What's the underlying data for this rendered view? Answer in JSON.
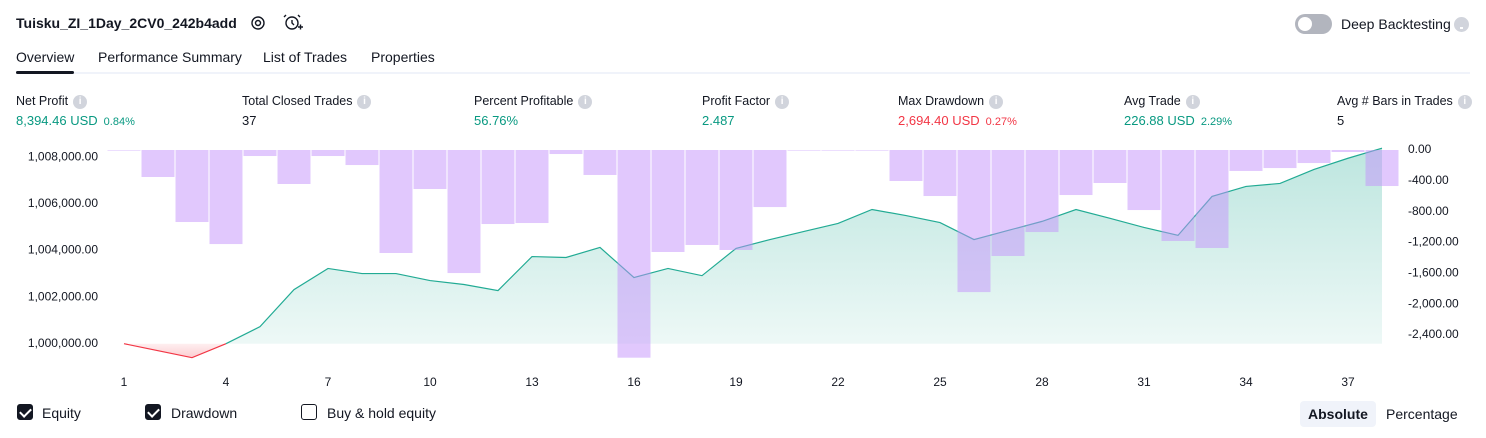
{
  "header": {
    "title": "Tuisku_ZI_1Day_2CV0_242b4add",
    "toggle_label": "Deep Backtesting",
    "toggle_on": false
  },
  "tabs": [
    "Overview",
    "Performance Summary",
    "List of Trades",
    "Properties"
  ],
  "active_tab": 0,
  "metrics": [
    {
      "label": "Net Profit",
      "value": "8,394.46 USD",
      "percent": "0.84%",
      "tone": "positive"
    },
    {
      "label": "Total Closed Trades",
      "value": "37",
      "tone": "neutral"
    },
    {
      "label": "Percent Profitable",
      "value": "56.76%",
      "tone": "positive"
    },
    {
      "label": "Profit Factor",
      "value": "2.487",
      "tone": "positive"
    },
    {
      "label": "Max Drawdown",
      "value": "2,694.40 USD",
      "percent": "0.27%",
      "tone": "negative"
    },
    {
      "label": "Avg Trade",
      "value": "226.88 USD",
      "percent": "2.29%",
      "tone": "positive"
    },
    {
      "label": "Avg # Bars in Trades",
      "value": "5",
      "tone": "neutral"
    }
  ],
  "chart_data": {
    "type": "combo",
    "x": [
      1,
      2,
      3,
      4,
      5,
      6,
      7,
      8,
      9,
      10,
      11,
      12,
      13,
      14,
      15,
      16,
      17,
      18,
      19,
      20,
      21,
      22,
      23,
      24,
      25,
      26,
      27,
      28,
      29,
      30,
      31,
      32,
      33,
      34,
      35,
      36,
      37,
      38
    ],
    "xlim": [
      0.5,
      38.5
    ],
    "xticks": [
      1,
      4,
      7,
      10,
      13,
      16,
      19,
      22,
      25,
      28,
      31,
      34,
      37
    ],
    "ylim": [
      999300,
      1008400
    ],
    "yticks": [
      {
        "value": 1000000,
        "label": "1,000,000.00"
      },
      {
        "value": 1002000,
        "label": "1,002,000.00"
      },
      {
        "value": 1004000,
        "label": "1,004,000.00"
      },
      {
        "value": 1006000,
        "label": "1,006,000.00"
      },
      {
        "value": 1008000,
        "label": "1,008,000.00"
      }
    ],
    "y2lim": [
      -2724,
      0
    ],
    "y2ticks": [
      {
        "value": 0,
        "label": "0.00"
      },
      {
        "value": -400,
        "label": "-400.00"
      },
      {
        "value": -800,
        "label": "-800.00"
      },
      {
        "value": -1200,
        "label": "-1,200.00"
      },
      {
        "value": -1600,
        "label": "-1,600.00"
      },
      {
        "value": -2000,
        "label": "-2,000.00"
      },
      {
        "value": -2400,
        "label": "-2,400.00"
      }
    ],
    "series": [
      {
        "name": "Equity",
        "type": "area",
        "color": "#22ab94",
        "loss_color": "#f23645",
        "axis": "y",
        "values": [
          1000000,
          999700,
          999400,
          1000000,
          1000730,
          1002320,
          1003230,
          1003010,
          1003010,
          1002710,
          1002540,
          1002280,
          1003740,
          1003700,
          1004130,
          1002840,
          1003230,
          1002920,
          1004090,
          1004470,
          1004820,
          1005160,
          1005760,
          1005500,
          1005200,
          1004470,
          1004860,
          1005250,
          1005760,
          1005380,
          1004990,
          1004650,
          1006320,
          1006750,
          1006880,
          1007480,
          1007960,
          1008394
        ]
      },
      {
        "name": "Drawdown",
        "type": "bar",
        "color": "#c391fb",
        "axis": "y2",
        "values": [
          0,
          -350,
          -934,
          -1220,
          -78,
          -441,
          -78,
          -195,
          -1336,
          -506,
          -1596,
          -960,
          -947,
          -52,
          -324,
          -2694,
          -1323,
          -1232,
          -1297,
          -740,
          0,
          0,
          0,
          -402,
          -597,
          -1843,
          -1375,
          -1064,
          -584,
          -428,
          -779,
          -1180,
          -1271,
          -272,
          -234,
          -169,
          -26,
          -467
        ]
      }
    ]
  },
  "legend": {
    "items": [
      "Equity",
      "Drawdown",
      "Buy & hold equity"
    ],
    "checked": [
      true,
      true,
      false
    ]
  },
  "modes": [
    "Absolute",
    "Percentage"
  ],
  "active_mode": 0
}
